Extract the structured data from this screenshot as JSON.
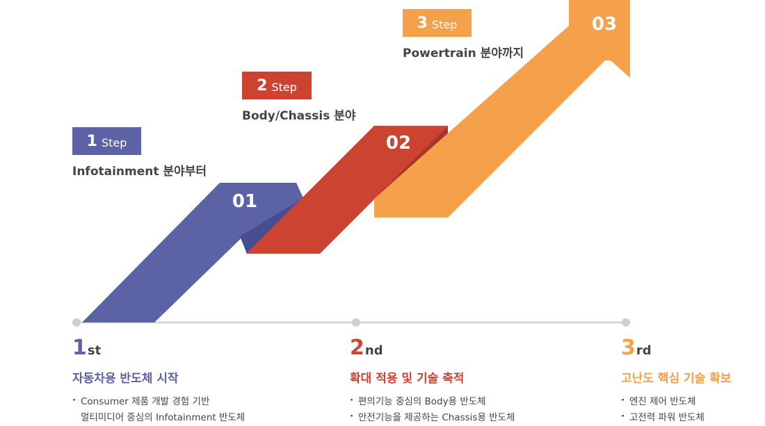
{
  "colors": {
    "blue": "#5b62a6",
    "red": "#cc4431",
    "orange": "#f5a04a",
    "line": "#d6d6d6",
    "dot": "#cfcfcf"
  },
  "steps": [
    {
      "num": "1",
      "word": "Step",
      "caption": "Infotainment 분야부터",
      "arrow_label": "01"
    },
    {
      "num": "2",
      "word": "Step",
      "caption": "Body/Chassis 분야",
      "arrow_label": "02"
    },
    {
      "num": "3",
      "word": "Step",
      "caption": "Powertrain 분야까지",
      "arrow_label": "03"
    }
  ],
  "stages": [
    {
      "num": "1",
      "suffix": "st",
      "title": "자동차용 반도체 시작",
      "items": [
        "Consumer 제품 개발 경험 기반",
        "멀티미디어 중심의 Infotainment 반도체"
      ]
    },
    {
      "num": "2",
      "suffix": "nd",
      "title": "확대 적용 및 기술 축적",
      "items": [
        "편의기능 중심의 Body용 반도체",
        "안전기능을 제공하는 Chassis용 반도체"
      ]
    },
    {
      "num": "3",
      "suffix": "rd",
      "title": "고난도 핵심 기술 확보",
      "items": [
        "엔진 제어 반도체",
        "고전력 파워 반도체"
      ]
    }
  ]
}
